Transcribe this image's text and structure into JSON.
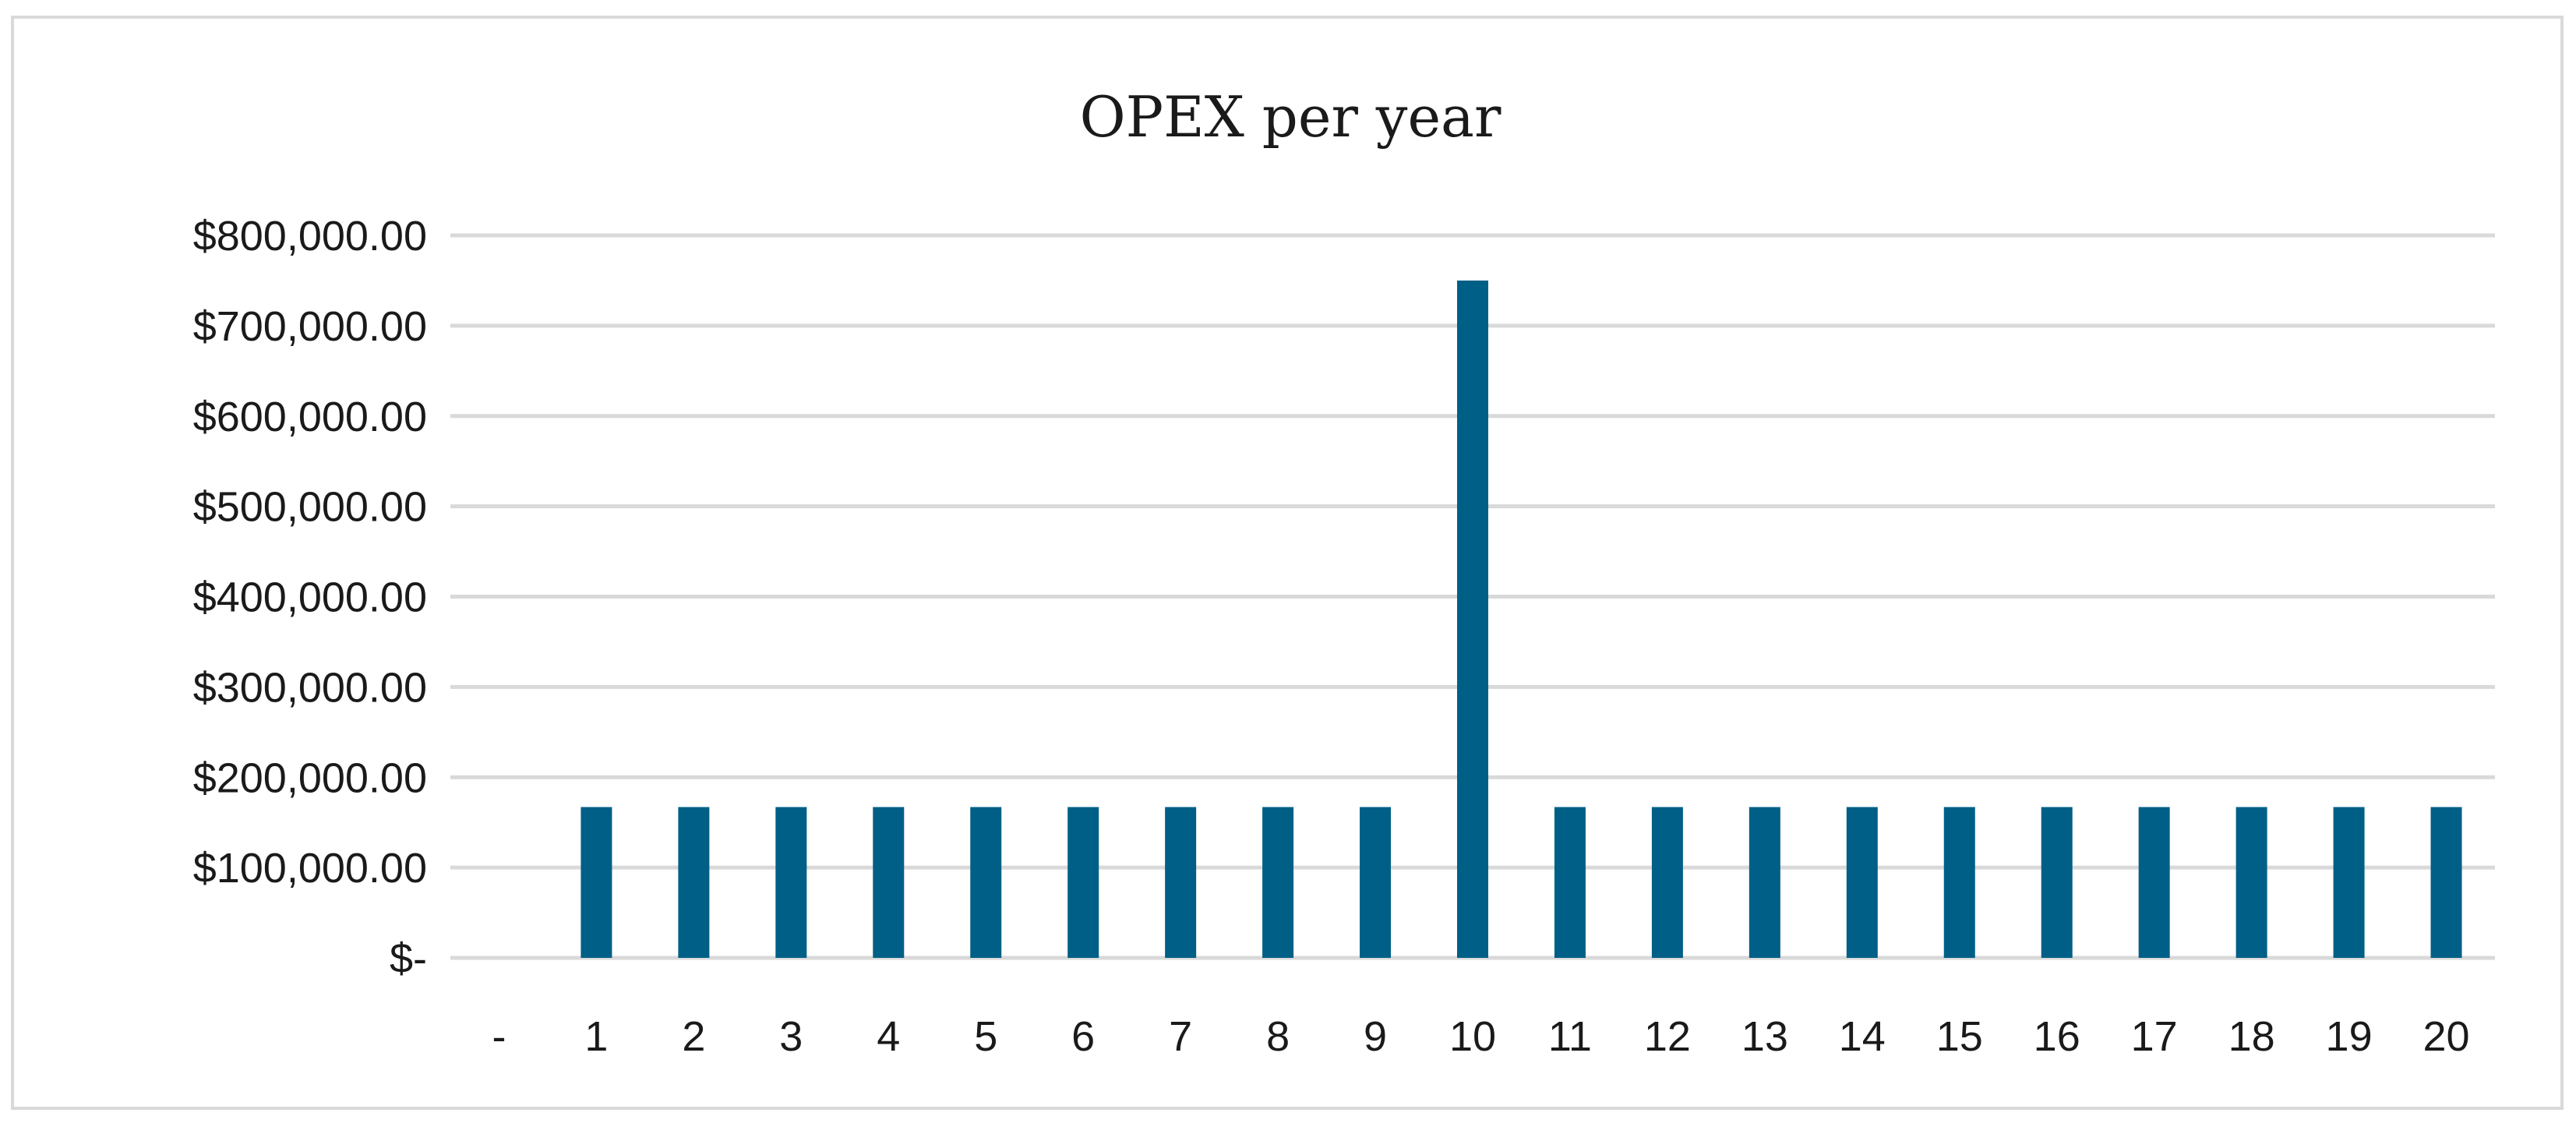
{
  "chart_data": {
    "type": "bar",
    "title": "OPEX per year",
    "xlabel": "",
    "ylabel": "",
    "categories": [
      "-",
      "1",
      "2",
      "3",
      "4",
      "5",
      "6",
      "7",
      "8",
      "9",
      "10",
      "11",
      "12",
      "13",
      "14",
      "15",
      "16",
      "17",
      "18",
      "19",
      "20"
    ],
    "values": [
      0,
      167000,
      167000,
      167000,
      167000,
      167000,
      167000,
      167000,
      167000,
      167000,
      750000,
      167000,
      167000,
      167000,
      167000,
      167000,
      167000,
      167000,
      167000,
      167000,
      167000
    ],
    "ylim": [
      0,
      800000
    ],
    "y_ticks": [
      0,
      100000,
      200000,
      300000,
      400000,
      500000,
      600000,
      700000,
      800000
    ],
    "y_tick_labels": [
      "$-",
      "$100,000.00",
      "$200,000.00",
      "$300,000.00",
      "$400,000.00",
      "$500,000.00",
      "$600,000.00",
      "$700,000.00",
      "$800,000.00"
    ],
    "grid": true,
    "bar_color": "#005f86",
    "grid_color": "#d9d9d9",
    "legend": "none"
  }
}
